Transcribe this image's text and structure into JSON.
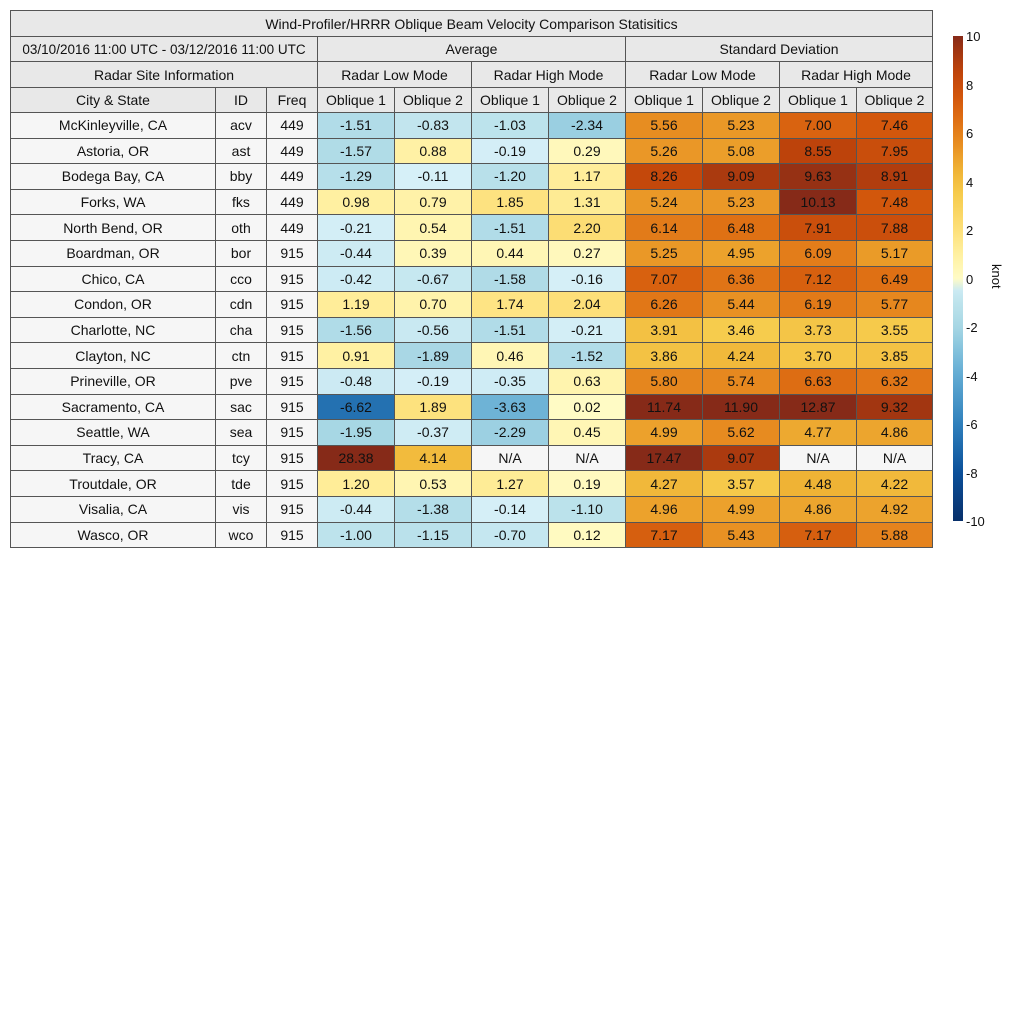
{
  "title": "Wind-Profiler/HRRR Oblique Beam Velocity Comparison Statisitics",
  "date_range": "03/10/2016 11:00 UTC - 03/12/2016 11:00 UTC",
  "groups": {
    "average": "Average",
    "std": "Standard Deviation"
  },
  "site_info_label": "Radar Site Information",
  "modes": {
    "low": "Radar Low Mode",
    "high": "Radar High Mode"
  },
  "columns": {
    "city": "City & State",
    "id": "ID",
    "freq": "Freq",
    "ob1": "Oblique 1",
    "ob2": "Oblique 2"
  },
  "colorbar": {
    "label": "knot",
    "ticks": [
      "10",
      "8",
      "6",
      "4",
      "2",
      "0",
      "-2",
      "-4",
      "-6",
      "-8",
      "-10"
    ],
    "range": [
      -10,
      10
    ]
  },
  "chart_data": {
    "type": "heatmap",
    "title": "Wind-Profiler/HRRR Oblique Beam Velocity Comparison Statisitics",
    "value_columns": [
      "Average Low Oblique 1",
      "Average Low Oblique 2",
      "Average High Oblique 1",
      "Average High Oblique 2",
      "SD Low Oblique 1",
      "SD Low Oblique 2",
      "SD High Oblique 1",
      "SD High Oblique 2"
    ],
    "rows": [
      {
        "city": "McKinleyville, CA",
        "id": "acv",
        "freq": "449",
        "values": [
          "-1.51",
          "-0.83",
          "-1.03",
          "-2.34",
          "5.56",
          "5.23",
          "7.00",
          "7.46"
        ]
      },
      {
        "city": "Astoria, OR",
        "id": "ast",
        "freq": "449",
        "values": [
          "-1.57",
          "0.88",
          "-0.19",
          "0.29",
          "5.26",
          "5.08",
          "8.55",
          "7.95"
        ]
      },
      {
        "city": "Bodega Bay, CA",
        "id": "bby",
        "freq": "449",
        "values": [
          "-1.29",
          "-0.11",
          "-1.20",
          "1.17",
          "8.26",
          "9.09",
          "9.63",
          "8.91"
        ]
      },
      {
        "city": "Forks, WA",
        "id": "fks",
        "freq": "449",
        "values": [
          "0.98",
          "0.79",
          "1.85",
          "1.31",
          "5.24",
          "5.23",
          "10.13",
          "7.48"
        ]
      },
      {
        "city": "North Bend, OR",
        "id": "oth",
        "freq": "449",
        "values": [
          "-0.21",
          "0.54",
          "-1.51",
          "2.20",
          "6.14",
          "6.48",
          "7.91",
          "7.88"
        ]
      },
      {
        "city": "Boardman, OR",
        "id": "bor",
        "freq": "915",
        "values": [
          "-0.44",
          "0.39",
          "0.44",
          "0.27",
          "5.25",
          "4.95",
          "6.09",
          "5.17"
        ]
      },
      {
        "city": "Chico, CA",
        "id": "cco",
        "freq": "915",
        "values": [
          "-0.42",
          "-0.67",
          "-1.58",
          "-0.16",
          "7.07",
          "6.36",
          "7.12",
          "6.49"
        ]
      },
      {
        "city": "Condon, OR",
        "id": "cdn",
        "freq": "915",
        "values": [
          "1.19",
          "0.70",
          "1.74",
          "2.04",
          "6.26",
          "5.44",
          "6.19",
          "5.77"
        ]
      },
      {
        "city": "Charlotte, NC",
        "id": "cha",
        "freq": "915",
        "values": [
          "-1.56",
          "-0.56",
          "-1.51",
          "-0.21",
          "3.91",
          "3.46",
          "3.73",
          "3.55"
        ]
      },
      {
        "city": "Clayton, NC",
        "id": "ctn",
        "freq": "915",
        "values": [
          "0.91",
          "-1.89",
          "0.46",
          "-1.52",
          "3.86",
          "4.24",
          "3.70",
          "3.85"
        ]
      },
      {
        "city": "Prineville, OR",
        "id": "pve",
        "freq": "915",
        "values": [
          "-0.48",
          "-0.19",
          "-0.35",
          "0.63",
          "5.80",
          "5.74",
          "6.63",
          "6.32"
        ]
      },
      {
        "city": "Sacramento, CA",
        "id": "sac",
        "freq": "915",
        "values": [
          "-6.62",
          "1.89",
          "-3.63",
          "0.02",
          "11.74",
          "11.90",
          "12.87",
          "9.32"
        ]
      },
      {
        "city": "Seattle, WA",
        "id": "sea",
        "freq": "915",
        "values": [
          "-1.95",
          "-0.37",
          "-2.29",
          "0.45",
          "4.99",
          "5.62",
          "4.77",
          "4.86"
        ]
      },
      {
        "city": "Tracy, CA",
        "id": "tcy",
        "freq": "915",
        "values": [
          "28.38",
          "4.14",
          "N/A",
          "N/A",
          "17.47",
          "9.07",
          "N/A",
          "N/A"
        ]
      },
      {
        "city": "Troutdale, OR",
        "id": "tde",
        "freq": "915",
        "values": [
          "1.20",
          "0.53",
          "1.27",
          "0.19",
          "4.27",
          "3.57",
          "4.48",
          "4.22"
        ]
      },
      {
        "city": "Visalia, CA",
        "id": "vis",
        "freq": "915",
        "values": [
          "-0.44",
          "-1.38",
          "-0.14",
          "-1.10",
          "4.96",
          "4.99",
          "4.86",
          "4.92"
        ]
      },
      {
        "city": "Wasco, OR",
        "id": "wco",
        "freq": "915",
        "values": [
          "-1.00",
          "-1.15",
          "-0.70",
          "0.12",
          "7.17",
          "5.43",
          "7.17",
          "5.88"
        ]
      }
    ],
    "na_color": "#f6f6f6"
  }
}
